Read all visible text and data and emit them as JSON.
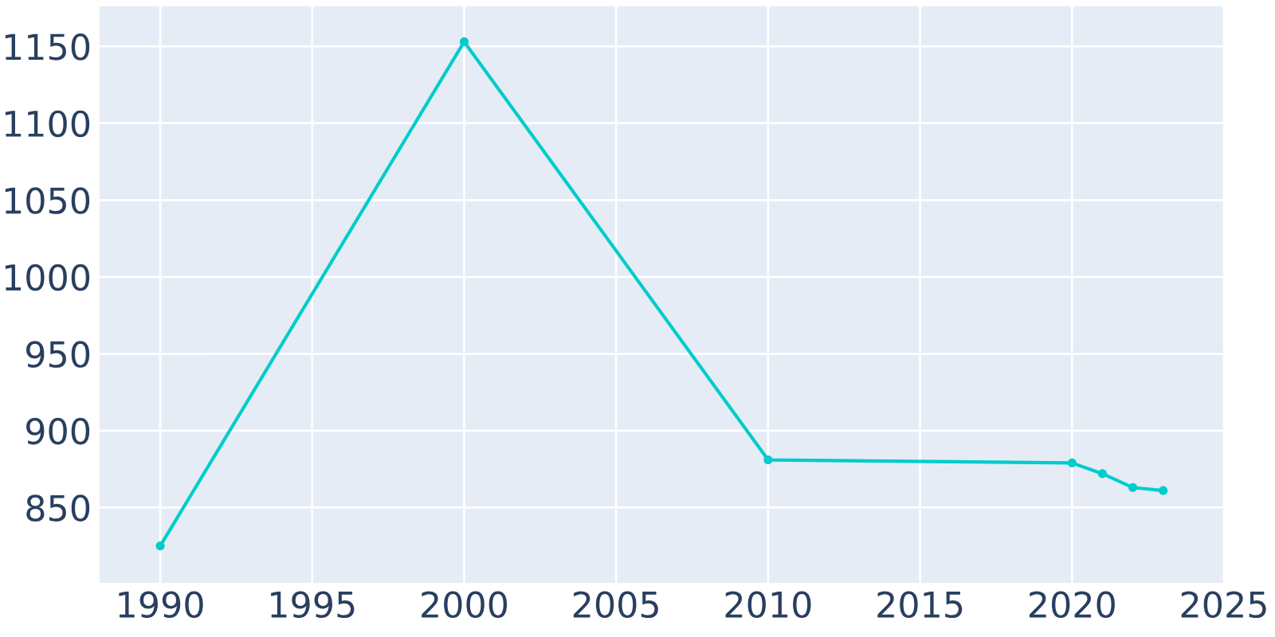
{
  "chart_data": {
    "type": "line",
    "x": [
      1990,
      2000,
      2010,
      2020,
      2021,
      2022,
      2023
    ],
    "series": [
      {
        "color": "#00cccc",
        "values": [
          825,
          1153,
          881,
          879,
          872,
          863,
          861
        ]
      }
    ],
    "xlim": [
      1988,
      2025
    ],
    "ylim": [
      801,
      1176
    ],
    "xticks": [
      1990,
      1995,
      2000,
      2005,
      2010,
      2015,
      2020,
      2025
    ],
    "yticks": [
      850,
      900,
      950,
      1000,
      1050,
      1100,
      1150
    ],
    "grid": true,
    "marker": "circle",
    "line_style": "solid"
  }
}
